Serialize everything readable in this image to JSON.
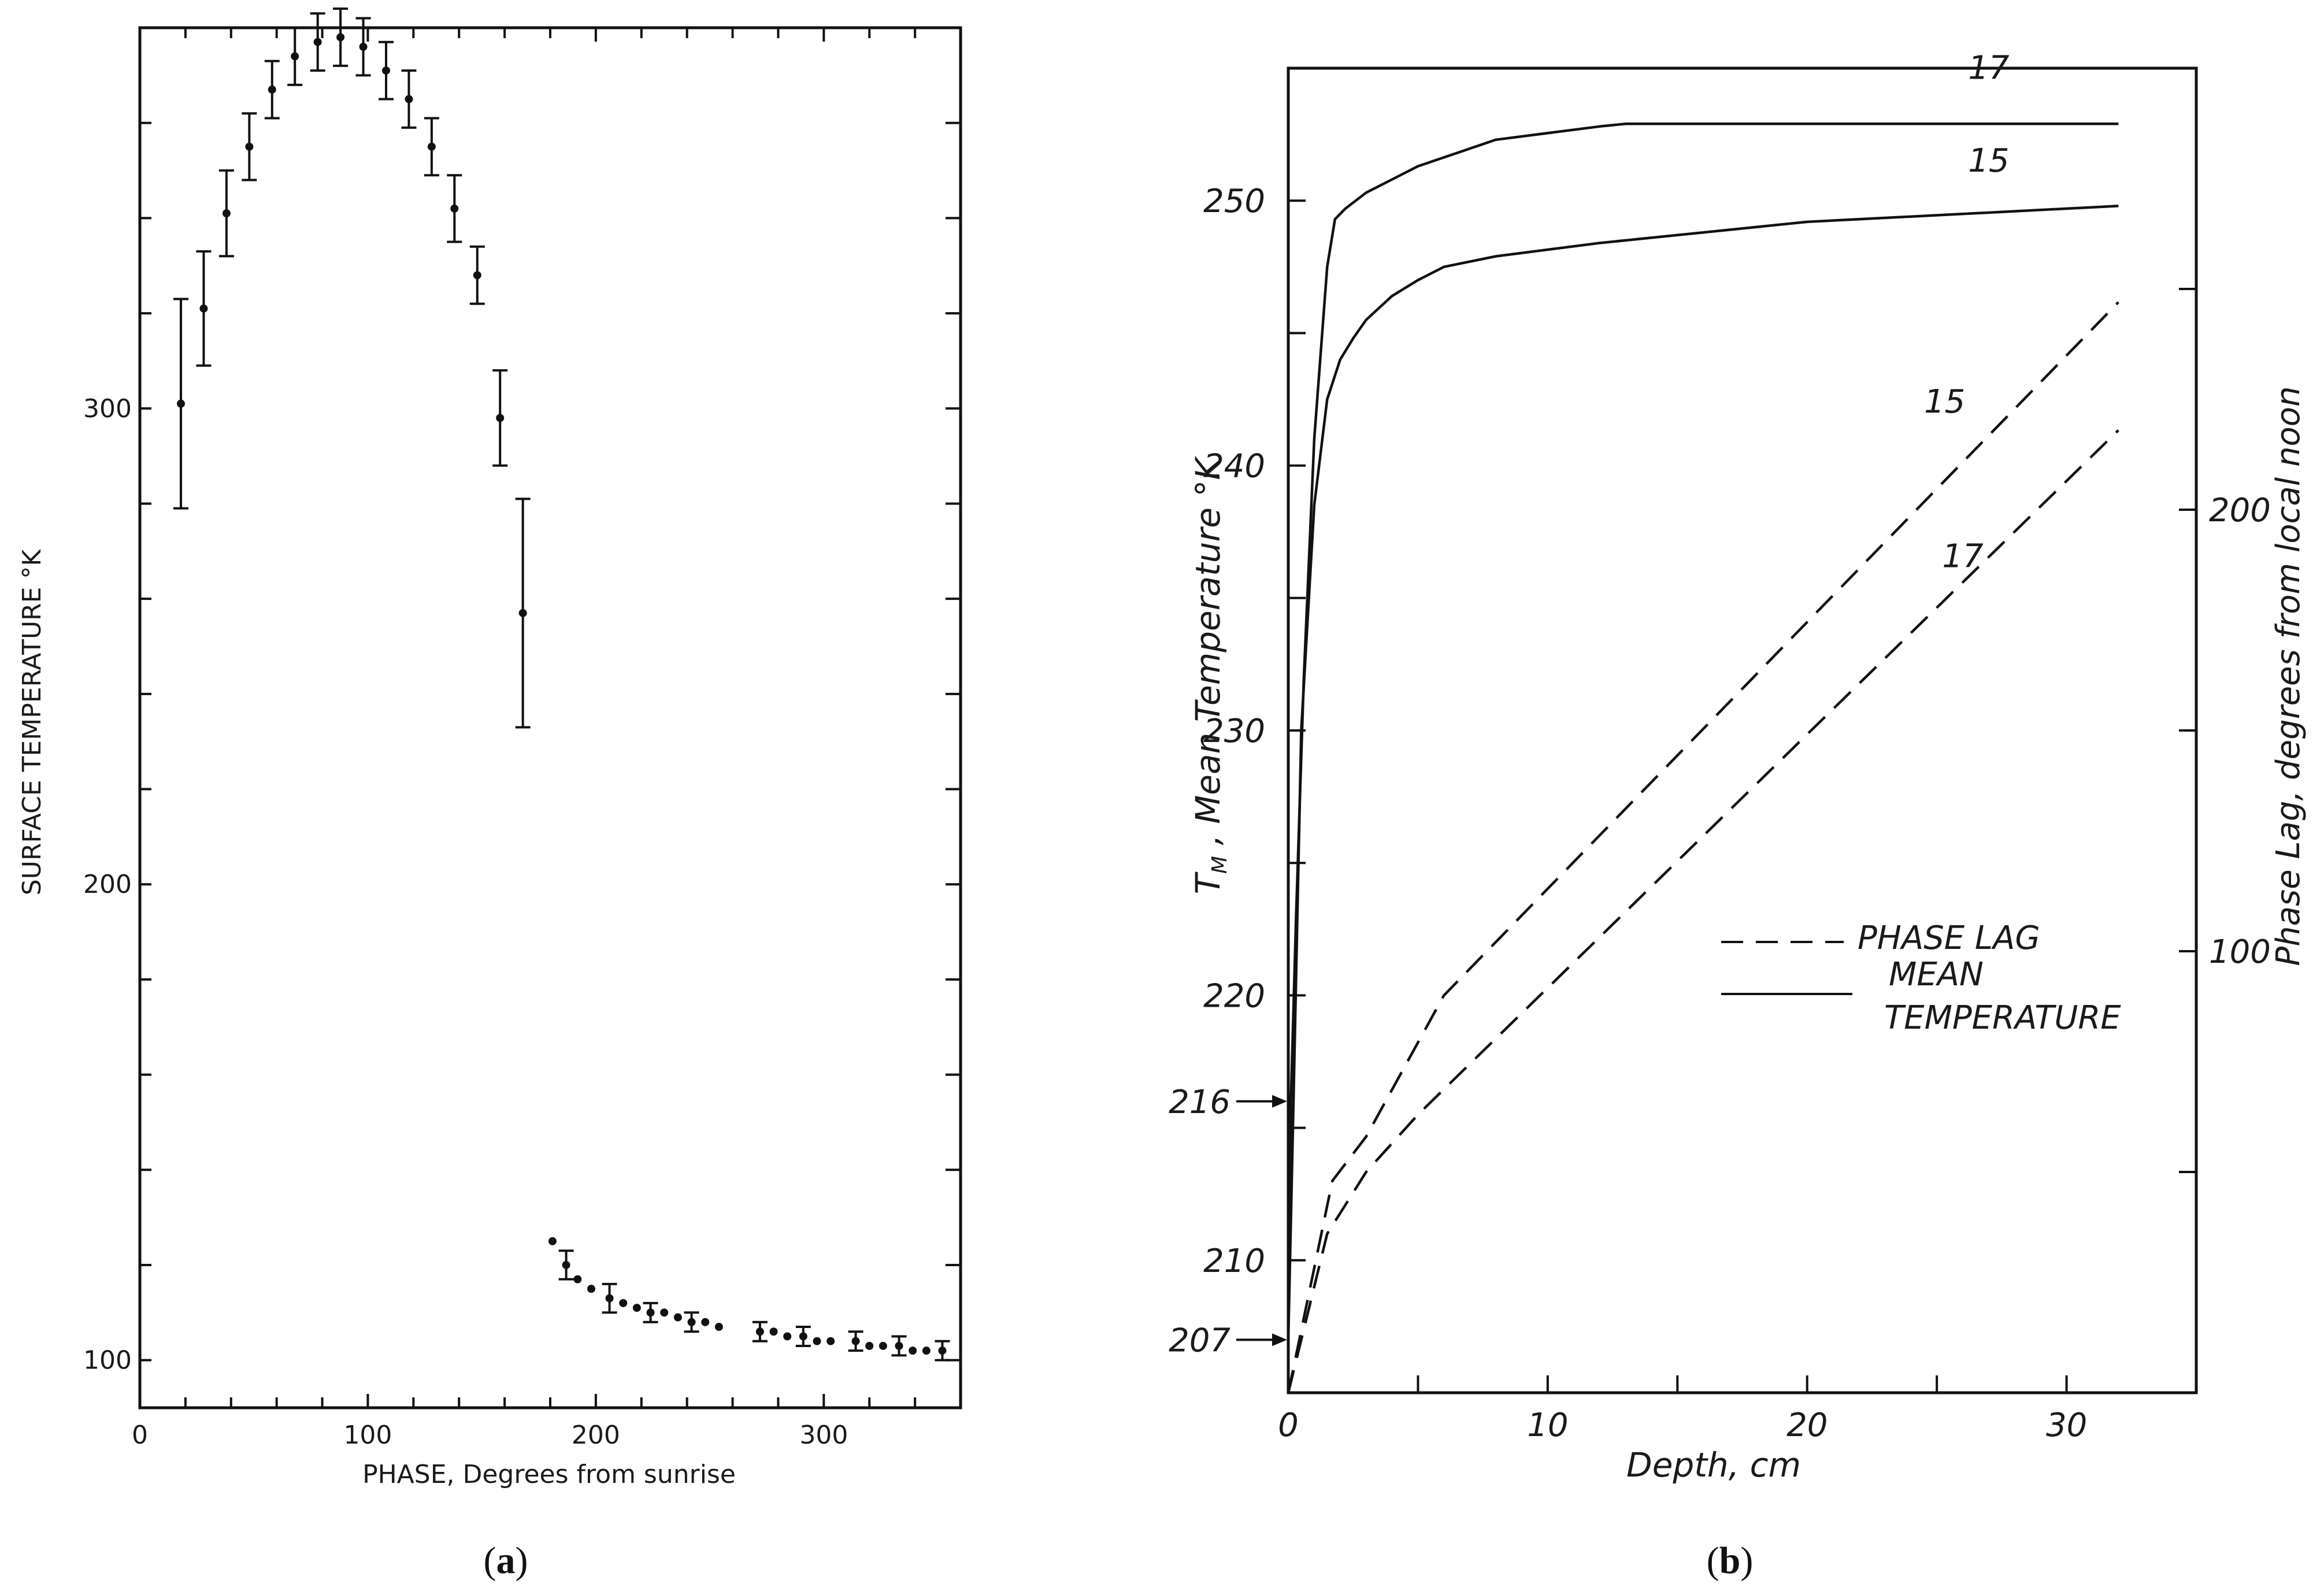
{
  "panels": {
    "a": {
      "caption_open": "(",
      "caption_letter": "a",
      "caption_close": ")"
    },
    "b": {
      "caption_open": "(",
      "caption_letter": "b",
      "caption_close": ")"
    }
  },
  "chart_data": [
    {
      "id": "a",
      "type": "scatter",
      "xlabel": "PHASE,   Degrees from sunrise",
      "ylabel": "SURFACE   TEMPERATURE °K",
      "xlim": [
        0,
        360
      ],
      "ylim": [
        90,
        380
      ],
      "x_ticks": [
        0,
        100,
        200,
        300
      ],
      "y_ticks": [
        100,
        200,
        300
      ],
      "grid": false,
      "series": [
        {
          "points_with_error": [
            {
              "x": 18,
              "y": 301,
              "err": 22
            },
            {
              "x": 28,
              "y": 321,
              "err": 12
            },
            {
              "x": 38,
              "y": 341,
              "err": 9
            },
            {
              "x": 48,
              "y": 355,
              "err": 7
            },
            {
              "x": 58,
              "y": 367,
              "err": 6
            },
            {
              "x": 68,
              "y": 374,
              "err": 6
            },
            {
              "x": 78,
              "y": 377,
              "err": 6
            },
            {
              "x": 88,
              "y": 378,
              "err": 6
            },
            {
              "x": 98,
              "y": 376,
              "err": 6
            },
            {
              "x": 108,
              "y": 371,
              "err": 6
            },
            {
              "x": 118,
              "y": 365,
              "err": 6
            },
            {
              "x": 128,
              "y": 355,
              "err": 6
            },
            {
              "x": 138,
              "y": 342,
              "err": 7
            },
            {
              "x": 148,
              "y": 328,
              "err": 6
            },
            {
              "x": 158,
              "y": 298,
              "err": 10
            },
            {
              "x": 168,
              "y": 257,
              "err": 24
            },
            {
              "x": 187,
              "y": 120,
              "err": 3
            },
            {
              "x": 206,
              "y": 113,
              "err": 3
            },
            {
              "x": 224,
              "y": 110,
              "err": 2
            },
            {
              "x": 242,
              "y": 108,
              "err": 2
            },
            {
              "x": 272,
              "y": 106,
              "err": 2
            },
            {
              "x": 291,
              "y": 105,
              "err": 2
            },
            {
              "x": 314,
              "y": 104,
              "err": 2
            },
            {
              "x": 333,
              "y": 103,
              "err": 2
            },
            {
              "x": 352,
              "y": 102,
              "err": 2
            }
          ],
          "points": [
            {
              "x": 181,
              "y": 125
            },
            {
              "x": 192,
              "y": 117
            },
            {
              "x": 198,
              "y": 115
            },
            {
              "x": 212,
              "y": 112
            },
            {
              "x": 218,
              "y": 111
            },
            {
              "x": 230,
              "y": 110
            },
            {
              "x": 236,
              "y": 109
            },
            {
              "x": 248,
              "y": 108
            },
            {
              "x": 254,
              "y": 107
            },
            {
              "x": 278,
              "y": 106
            },
            {
              "x": 284,
              "y": 105
            },
            {
              "x": 297,
              "y": 104
            },
            {
              "x": 303,
              "y": 104
            },
            {
              "x": 320,
              "y": 103
            },
            {
              "x": 326,
              "y": 103
            },
            {
              "x": 339,
              "y": 102
            },
            {
              "x": 345,
              "y": 102
            }
          ]
        }
      ]
    },
    {
      "id": "b",
      "type": "line",
      "xlabel": "Depth, cm",
      "ylabel": "T_M , Mean Temperature °K",
      "y_title_main": "T",
      "y_title_sub": "M",
      "y_title_rest": " , Mean Temperature °K",
      "y2label": "Phase  Lag, degrees from local noon",
      "xlim": [
        0,
        35
      ],
      "ylim": [
        205,
        255
      ],
      "y2lim": [
        0,
        300
      ],
      "x_ticks": [
        0,
        10,
        20,
        30
      ],
      "x_tick_labels": [
        "0",
        "10",
        "20",
        "30"
      ],
      "y_ticks": [
        210,
        220,
        230,
        240,
        250
      ],
      "y_tick_labels": [
        "210",
        "220",
        "230",
        "240",
        "250"
      ],
      "y2_ticks": [
        100,
        200
      ],
      "y2_tick_labels": [
        "100",
        "200"
      ],
      "arrow_marks": [
        {
          "y": 216,
          "label": "216"
        },
        {
          "y": 207,
          "label": "207"
        }
      ],
      "legend": {
        "phase_lag": "PHASE  LAG",
        "mean_line1": "MEAN",
        "mean_line2": "TEMPERATURE",
        "position": "lower-right"
      },
      "grid": false,
      "series": [
        {
          "name": "17",
          "kind": "mean_temperature",
          "axis": "left",
          "x": [
            0,
            0.1,
            0.3,
            0.6,
            1.0,
            1.5,
            1.8,
            2.2,
            3,
            5,
            8,
            12,
            13,
            20,
            32
          ],
          "y": [
            207,
            216,
            223,
            232,
            241,
            247.5,
            249.3,
            249.7,
            250.3,
            251.3,
            252.3,
            252.8,
            252.9,
            252.9,
            252.9
          ]
        },
        {
          "name": "15",
          "kind": "mean_temperature",
          "axis": "left",
          "x": [
            0,
            0.2,
            0.5,
            1,
            1.5,
            2,
            2.5,
            3,
            4,
            5,
            6,
            8,
            12,
            20,
            32
          ],
          "y": [
            207,
            216,
            230,
            238.5,
            242.5,
            244,
            244.8,
            245.5,
            246.4,
            247,
            247.5,
            247.9,
            248.4,
            249.2,
            249.8
          ]
        },
        {
          "name": "15",
          "kind": "phase_lag",
          "axis": "right",
          "x": [
            0,
            1.7,
            3,
            6,
            32
          ],
          "y": [
            0,
            48,
            58,
            90,
            247
          ]
        },
        {
          "name": "17",
          "kind": "phase_lag",
          "axis": "right",
          "x": [
            0,
            1.5,
            3,
            5,
            32
          ],
          "y": [
            0,
            36,
            50,
            63,
            218
          ]
        }
      ],
      "line_labels": [
        {
          "text": "17",
          "attach": "mean_17"
        },
        {
          "text": "15",
          "attach": "mean_15"
        },
        {
          "text": "15",
          "attach": "phase_15"
        },
        {
          "text": "17",
          "attach": "phase_17"
        }
      ]
    }
  ]
}
